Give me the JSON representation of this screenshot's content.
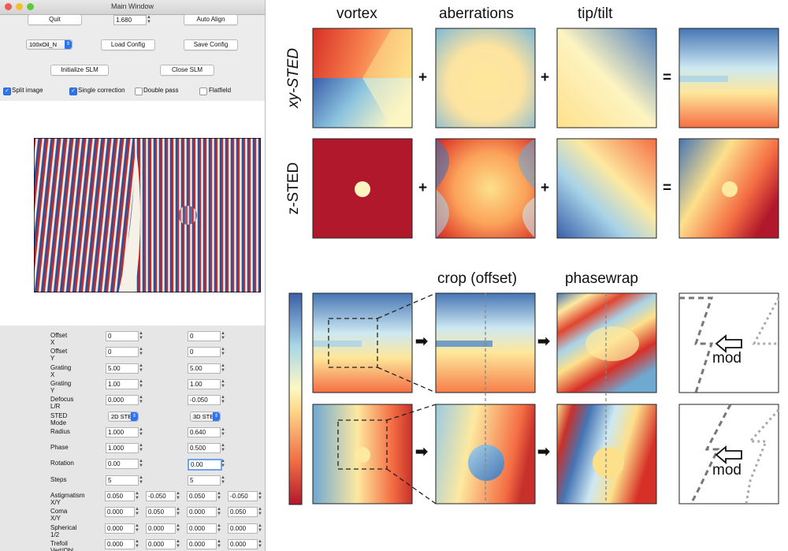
{
  "window": {
    "title": "Main Window",
    "buttons": {
      "quit": "Quit",
      "auto_align": "Auto Align",
      "load_config": "Load Config",
      "save_config": "Save Config",
      "initialize_slm": "Initialize SLM",
      "close_slm": "Close SLM"
    },
    "na_value": "1.680",
    "objective": "100xOil_N",
    "checkboxes": [
      {
        "label": "Split image",
        "checked": true
      },
      {
        "label": "Single correction",
        "checked": true
      },
      {
        "label": "Double pass",
        "checked": false
      },
      {
        "label": "Flatfield",
        "checked": false
      }
    ],
    "params": [
      {
        "label": "Offset X",
        "left": "0",
        "right": "0"
      },
      {
        "label": "Offset Y",
        "left": "0",
        "right": "0"
      },
      {
        "label": "Grating X",
        "left": "5.00",
        "right": "5.00"
      },
      {
        "label": "Grating Y",
        "left": "1.00",
        "right": "1.00"
      },
      {
        "label": "Defocus L/R",
        "left": "0.000",
        "right": "-0.050"
      },
      {
        "label": "STED Mode",
        "left": "2D STED",
        "right": "3D STED"
      },
      {
        "label": "Radius",
        "left": "1.000",
        "right": "0.640"
      },
      {
        "label": "Phase",
        "left": "1.000",
        "right": "0.500"
      },
      {
        "label": "Rotation",
        "left": "0.00",
        "right": "0.00"
      },
      {
        "label": "Steps",
        "left": "5",
        "right": "5"
      }
    ],
    "pairs": [
      {
        "label": "Astigmatism X/Y",
        "values": [
          "0.050",
          "-0.050",
          "0.050",
          "-0.050"
        ]
      },
      {
        "label": "Coma X/Y",
        "values": [
          "0.000",
          "0.050",
          "0.000",
          "0.050"
        ]
      },
      {
        "label": "Spherical 1/2",
        "values": [
          "0.000",
          "0.000",
          "0.000",
          "0.000"
        ]
      },
      {
        "label": "Trefoil Vert/Obl",
        "values": [
          "0.000",
          "0.000",
          "0.000",
          "0.000"
        ]
      }
    ]
  },
  "figure": {
    "headers": {
      "vortex": "vortex",
      "aberrations": "aberrations",
      "tiptilt": "tip/tilt",
      "crop": "crop (offset)",
      "phasewrap": "phasewrap"
    },
    "rows": {
      "xy": "xy-STED",
      "z": "z-STED"
    },
    "ops": {
      "plus": "+",
      "equals": "=",
      "arrow": "➡"
    },
    "mod": "mod"
  }
}
